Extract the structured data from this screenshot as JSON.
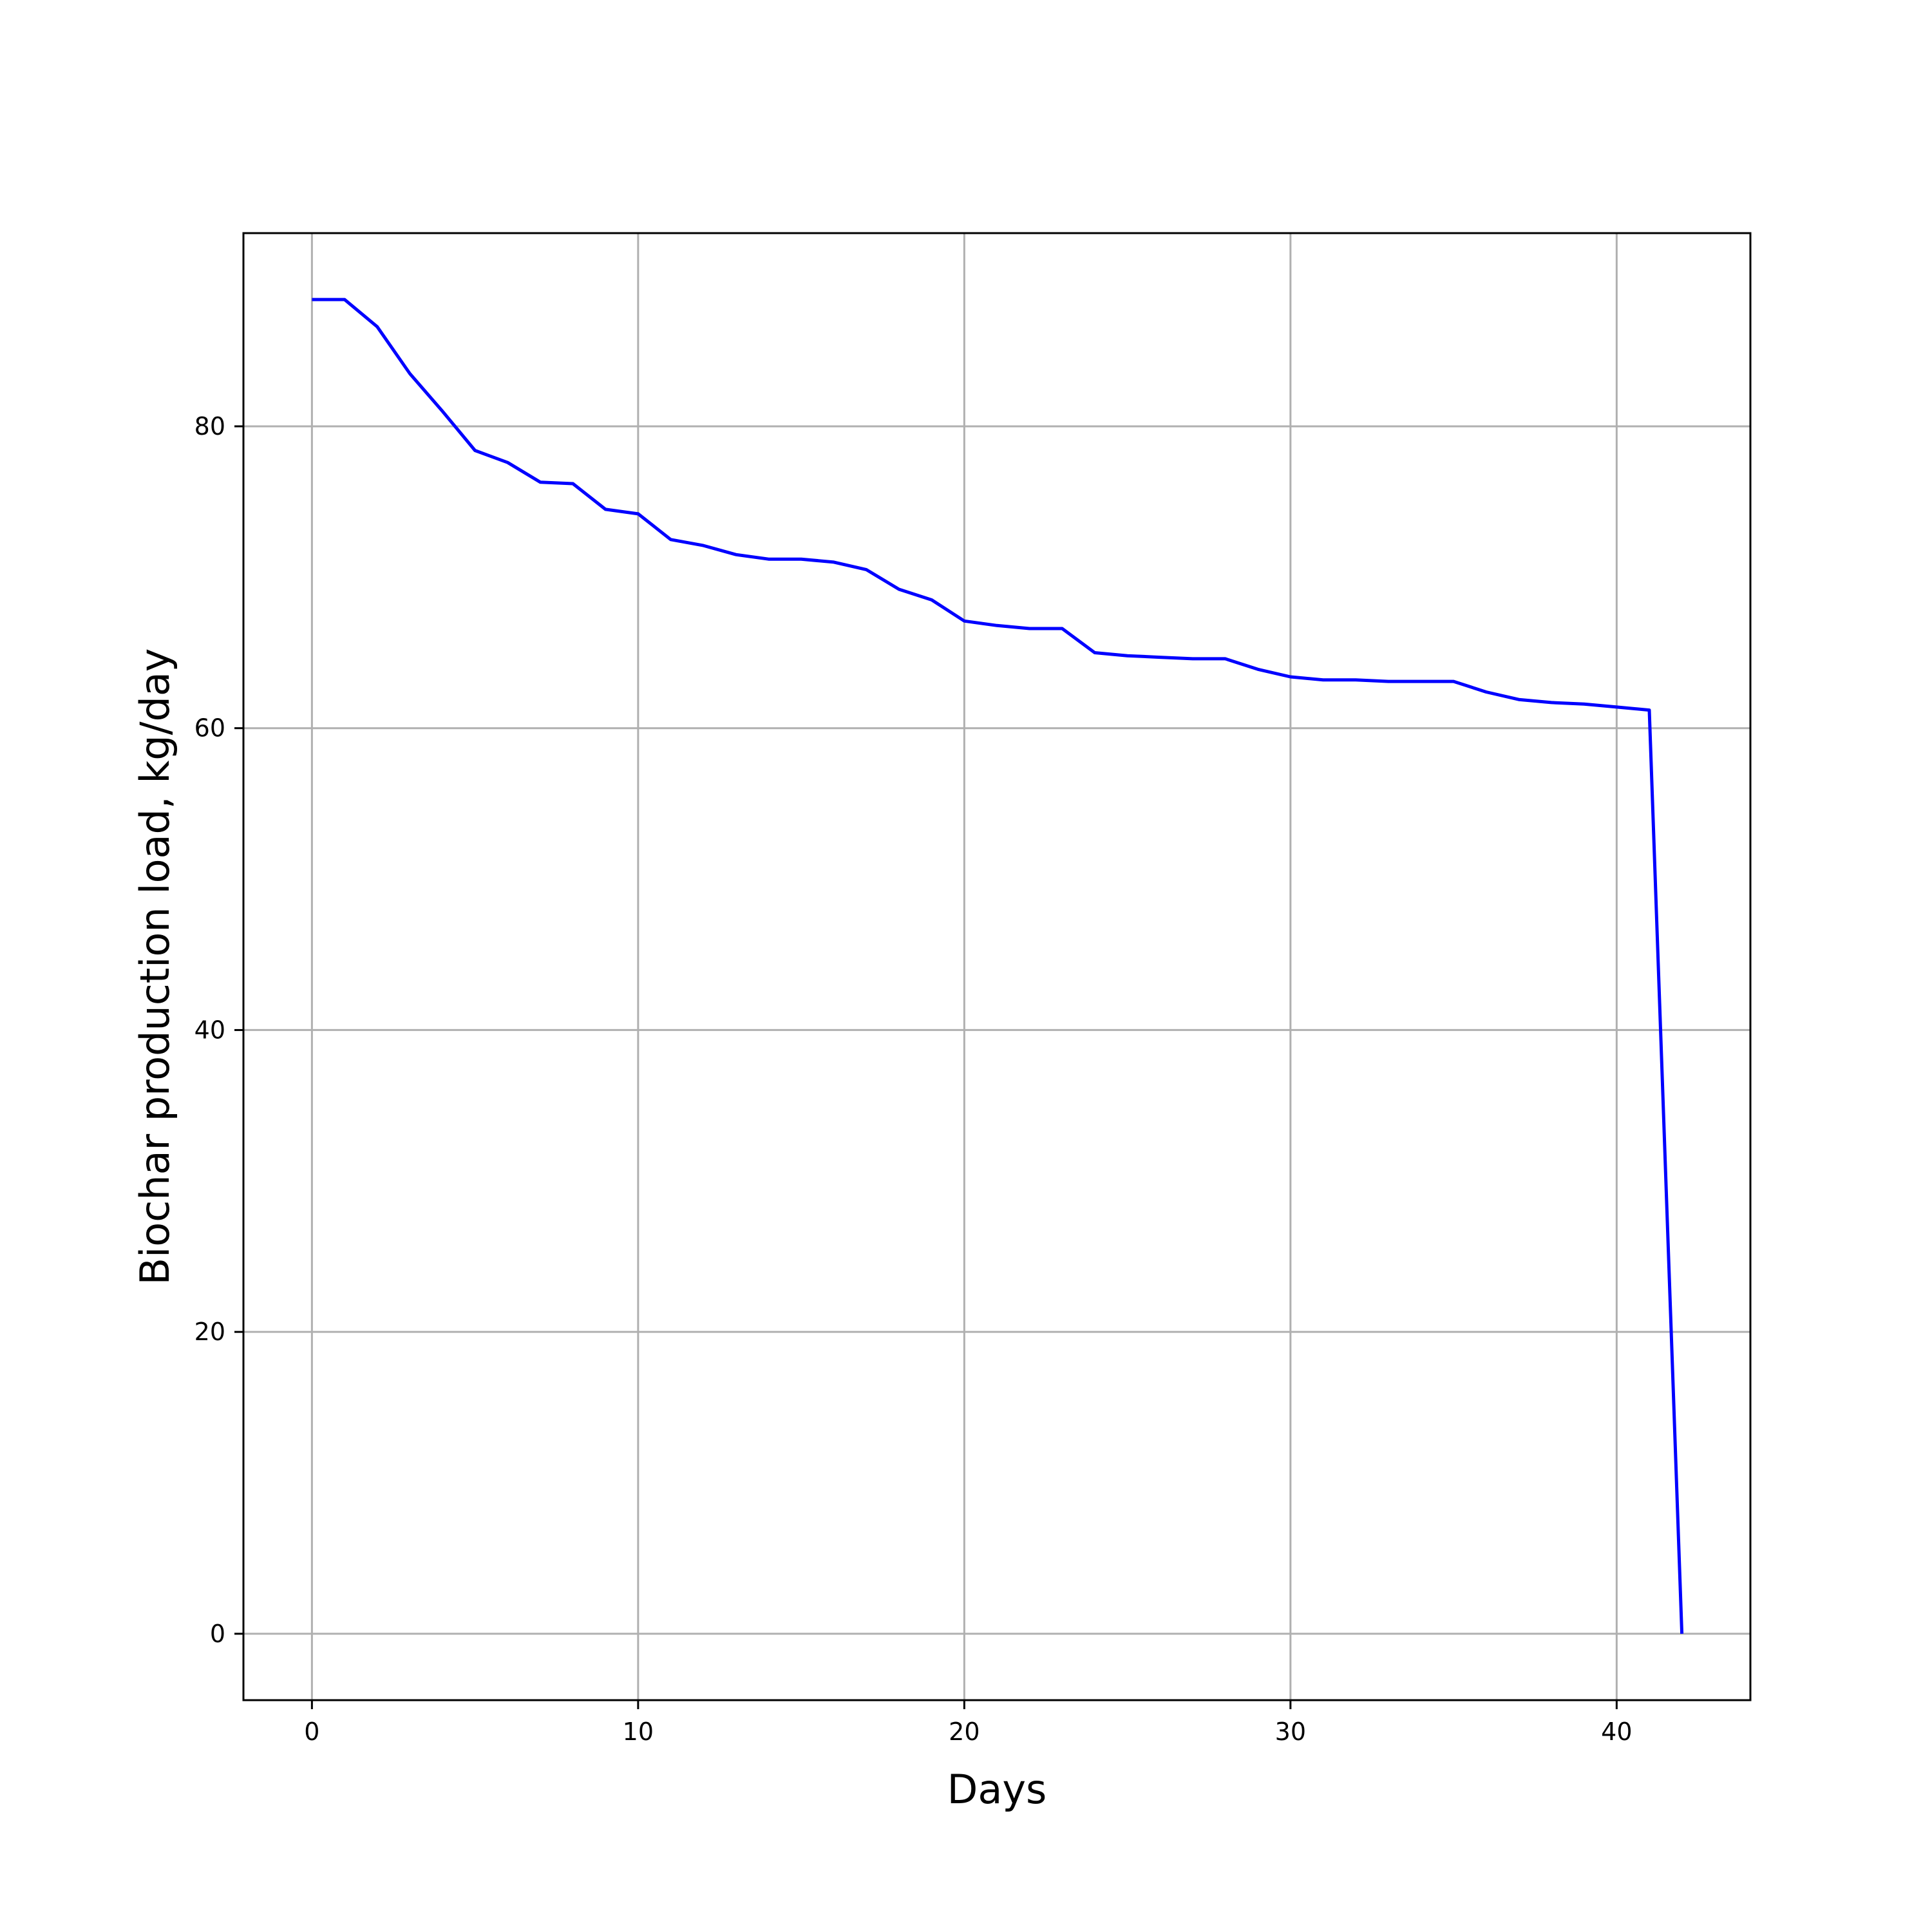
{
  "chart_data": {
    "type": "line",
    "title": "",
    "xlabel": "Days",
    "ylabel": "Biochar production load, kg/day",
    "xlim": [
      -2.1,
      44.1
    ],
    "ylim": [
      -4.4,
      92.8
    ],
    "xticks": [
      0,
      10,
      20,
      30,
      40
    ],
    "yticks": [
      0,
      20,
      40,
      60,
      80
    ],
    "grid": true,
    "legend": "none",
    "line_color": "#0000ff",
    "series": [
      {
        "x": [
          0,
          1,
          2,
          3,
          4,
          5,
          6,
          7,
          8,
          9,
          10,
          11,
          12,
          13,
          14,
          15,
          16,
          17,
          18,
          19,
          20,
          21,
          22,
          23,
          24,
          25,
          26,
          27,
          28,
          29,
          30,
          31,
          32,
          33,
          34,
          35,
          36,
          37,
          38,
          39,
          40,
          41,
          42
        ],
        "values": [
          88.4,
          88.4,
          86.6,
          83.5,
          81.0,
          78.4,
          77.6,
          76.3,
          76.2,
          74.5,
          74.2,
          72.5,
          72.1,
          71.5,
          71.2,
          71.2,
          71.0,
          70.5,
          69.2,
          68.5,
          67.1,
          66.8,
          66.6,
          66.6,
          65.0,
          64.8,
          64.7,
          64.6,
          64.6,
          63.9,
          63.4,
          63.2,
          63.2,
          63.1,
          63.1,
          63.1,
          62.4,
          61.9,
          61.7,
          61.6,
          61.4,
          61.2,
          0.0
        ]
      }
    ]
  }
}
